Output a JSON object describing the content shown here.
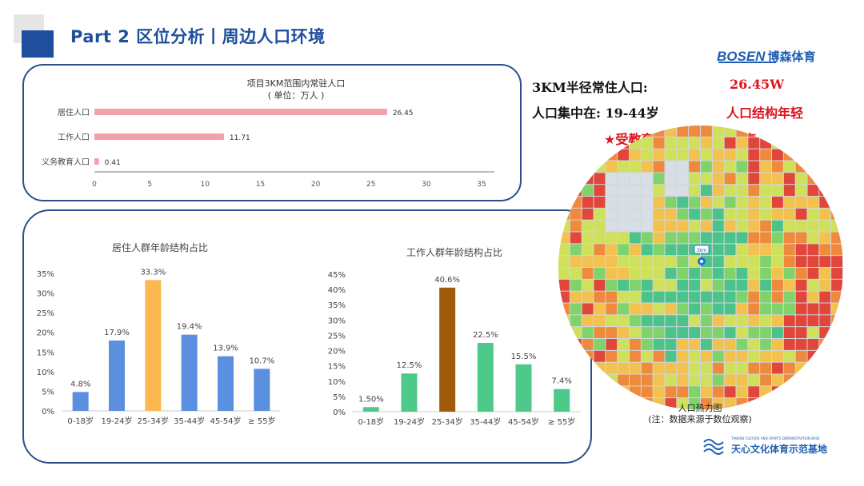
{
  "header": {
    "title": "Part 2 区位分析丨周边人口环境",
    "brand_en": "BOSEN",
    "brand_cn": "博森体育"
  },
  "stats": {
    "line1_label": "3KM半径常住人口:",
    "line1_value": "26.45W",
    "line2_label": "人口集中在: 19-44岁",
    "line2_value": "人口结构年轻",
    "highlight": "★受教育阶段人口比率较高"
  },
  "heatmap": {
    "marker_label": "3km",
    "caption_line1": "人口热力图",
    "caption_line2": "(注：数据来源于数位观察)"
  },
  "footer": {
    "org_name": "天心文化体育示范基地",
    "org_sub": "TIANXIN CULTURE AND SPORTS DEMONSTRATION BASE"
  },
  "chart_data": [
    {
      "type": "bar",
      "orientation": "horizontal",
      "title": "项目3KM范围内常驻人口",
      "subtitle": "( 单位：万人 )",
      "categories": [
        "居住人口",
        "工作人口",
        "义务教育人口"
      ],
      "values": [
        26.45,
        11.71,
        0.41
      ],
      "value_labels": [
        "26.45",
        "11.71",
        "0.41"
      ],
      "xlim": [
        0,
        35
      ],
      "xticks": [
        0,
        5,
        10,
        15,
        20,
        25,
        30,
        35
      ],
      "color": "#f2a1ab"
    },
    {
      "type": "bar",
      "title": "居住人群年龄结构占比",
      "categories": [
        "0-18岁",
        "19-24岁",
        "25-34岁",
        "35-44岁",
        "45-54岁",
        "≥ 55岁"
      ],
      "values": [
        4.8,
        17.9,
        33.3,
        19.4,
        13.9,
        10.7
      ],
      "value_labels": [
        "4.8%",
        "17.9%",
        "33.3%",
        "19.4%",
        "13.9%",
        "10.7%"
      ],
      "ylim": [
        0,
        35
      ],
      "yticks": [
        "0%",
        "5%",
        "10%",
        "15%",
        "20%",
        "25%",
        "30%",
        "35%"
      ],
      "colors": [
        "#5b8fe0",
        "#5b8fe0",
        "#fbb84e",
        "#5b8fe0",
        "#5b8fe0",
        "#5b8fe0"
      ]
    },
    {
      "type": "bar",
      "title": "工作人群年龄结构占比",
      "categories": [
        "0-18岁",
        "19-24岁",
        "25-34岁",
        "35-44岁",
        "45-54岁",
        "≥ 55岁"
      ],
      "values": [
        1.5,
        12.5,
        40.6,
        22.5,
        15.5,
        7.4
      ],
      "value_labels": [
        "1.50%",
        "12.5%",
        "40.6%",
        "22.5%",
        "15.5%",
        "7.4%"
      ],
      "ylim": [
        0,
        45
      ],
      "yticks": [
        "0%",
        "5%",
        "10%",
        "15%",
        "20%",
        "25%",
        "30%",
        "35%",
        "40%",
        "45%"
      ],
      "colors": [
        "#4dc98a",
        "#4dc98a",
        "#a05a0b",
        "#4dc98a",
        "#4dc98a",
        "#4dc98a"
      ]
    }
  ]
}
